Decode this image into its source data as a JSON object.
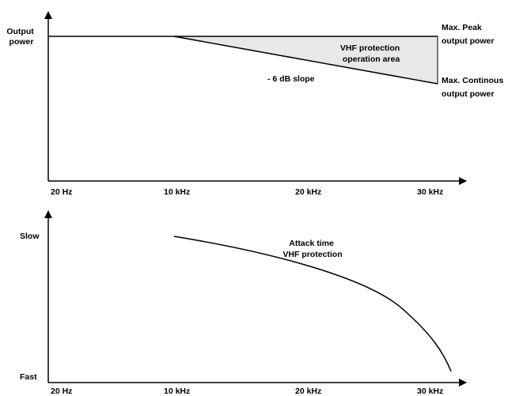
{
  "colors": {
    "line": "#000000",
    "area_fill": "#e8e8e8",
    "background": "#ffffff"
  },
  "top_chart": {
    "y_label_lines": [
      "Output",
      "power"
    ],
    "x_ticks": [
      "20 Hz",
      "10 kHz",
      "20 kHz",
      "30 kHz"
    ],
    "area_label_lines": [
      "VHF protection",
      "operation area"
    ],
    "slope_label": "- 6 dB slope",
    "max_peak_lines": [
      "Max. Peak",
      "output power"
    ],
    "max_continuous_lines": [
      "Max. Continous",
      "output power"
    ]
  },
  "bottom_chart": {
    "y_top_label": "Slow",
    "y_bottom_label": "Fast",
    "x_ticks": [
      "20 Hz",
      "10 kHz",
      "20 kHz",
      "30 kHz"
    ],
    "curve_label_lines": [
      "Attack time",
      "VHF protection"
    ]
  }
}
